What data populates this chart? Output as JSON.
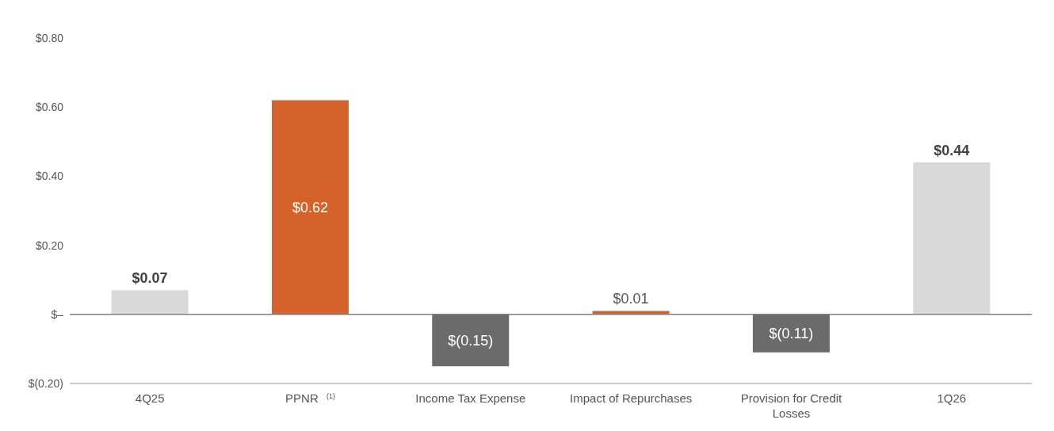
{
  "chart_data": {
    "type": "bar",
    "categories": [
      "4Q25",
      "PPNR $^{(1)}$",
      "Income Tax Expense",
      "Impact of Repurchases",
      "Provision for Credit Losses",
      "1Q26"
    ],
    "values": [
      0.07,
      0.62,
      -0.15,
      0.01,
      -0.11,
      0.44
    ],
    "colors": [
      "#d9d9d9",
      "#d4622a",
      "#6b6b6b",
      "#d4622a",
      "#6b6b6b",
      "#d9d9d9"
    ],
    "value_labels": [
      "$0.07",
      "$0.62",
      "$(0.15)",
      "$0.01",
      "$(0.11)",
      "$0.44"
    ],
    "ylim": [
      -0.2,
      0.8
    ],
    "yticks": [
      {
        "value": -0.2,
        "label": "$(0.20)"
      },
      {
        "value": 0,
        "label": "$–"
      },
      {
        "value": 0.2,
        "label": "$0.20"
      },
      {
        "value": 0.4,
        "label": "$0.40"
      },
      {
        "value": 0.6,
        "label": "$0.60"
      },
      {
        "value": 0.8,
        "label": "$0.80"
      }
    ],
    "ref_lines": [
      {
        "axis": "y",
        "value": 0,
        "color": "#7f7f7f"
      }
    ]
  }
}
